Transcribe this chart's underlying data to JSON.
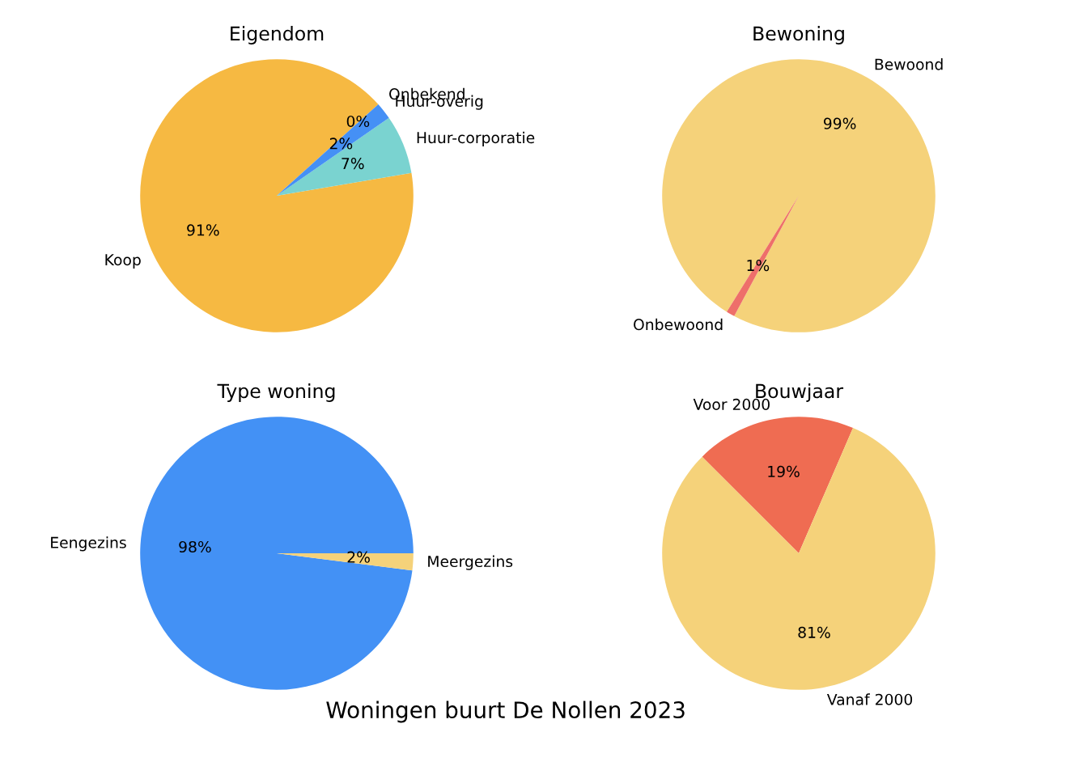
{
  "chart_data": [
    {
      "type": "pie",
      "title": "Eigendom",
      "categories": [
        "Koop",
        "Huur-corporatie",
        "Huur-overig",
        "Onbekend"
      ],
      "values": [
        91,
        7,
        2,
        0
      ],
      "value_labels": [
        "91%",
        "7%",
        "2%",
        "0%"
      ],
      "colors": [
        "#f6b942",
        "#7ad3d0",
        "#4590f5",
        "#e9705f"
      ]
    },
    {
      "type": "pie",
      "title": "Bewoning",
      "categories": [
        "Bewoond",
        "Onbewoond"
      ],
      "values": [
        99,
        1
      ],
      "value_labels": [
        "99%",
        "1%"
      ],
      "colors": [
        "#f5d27a",
        "#ee6f6a"
      ]
    },
    {
      "type": "pie",
      "title": "Type woning",
      "categories": [
        "Eengezins",
        "Meergezins"
      ],
      "values": [
        98,
        2
      ],
      "value_labels": [
        "98%",
        "2%"
      ],
      "colors": [
        "#4391f5",
        "#f5d27a"
      ]
    },
    {
      "type": "pie",
      "title": "Bouwjaar",
      "categories": [
        "Voor 2000",
        "Vanaf 2000"
      ],
      "values": [
        19,
        81
      ],
      "value_labels": [
        "19%",
        "81%"
      ],
      "colors": [
        "#ef6c52",
        "#f5d27a"
      ],
      "annotations": [
        "Woningen buurt De Nollen 2023"
      ]
    }
  ]
}
